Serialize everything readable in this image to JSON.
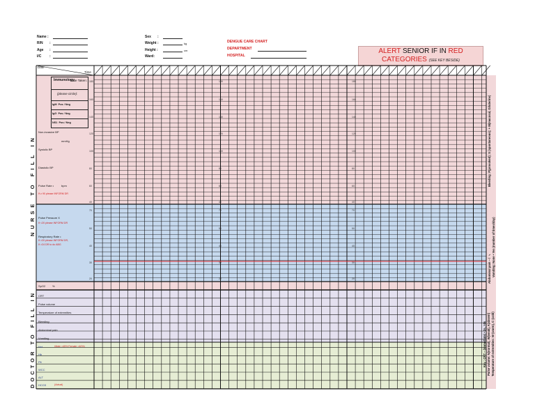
{
  "patient": {
    "name": "Name :",
    "rn": "R/N",
    "age": "Age",
    "ic": "I/C",
    "colon": ":",
    "sex": "Sex",
    "weight": "Weight :",
    "weight_unit": "kg",
    "height": "Height :",
    "height_unit": "cm",
    "ward": "Ward:"
  },
  "chart": {
    "title": "DENGUE CARE CHART",
    "department": "DEPARTMENT",
    "hospital": "HOSPITAL"
  },
  "alert": {
    "w1": "ALERT",
    "w2": " SENIOR IF IN ",
    "w3": "RED",
    "w4": "CATEGORIES",
    "note": "(SEE KEY BESIDE)"
  },
  "grid_header": {
    "date": "Date",
    "time": "Time"
  },
  "immunology": {
    "title": "Immunology",
    "date_taken": "Date Taken:",
    "please_circle": "(please circle):",
    "rows": [
      {
        "name": "IgM",
        "value": "Pos / Neg"
      },
      {
        "name": "IgG",
        "value": "Pos / Neg"
      },
      {
        "name": "NS1",
        "value": "Pos / Neg"
      }
    ]
  },
  "nurse_rows": {
    "nibp": "Non-invasive BP",
    "mmhg": "mmHg",
    "systolic": "Systolic BP",
    "diastolic": "Diastolic BP",
    "pulse_rate": "Pulse Rate •",
    "bpm": "bpm",
    "pulse_alert": "If ≥ 90 please INFORM DR",
    "pulse_pressure": "Pulse Pressure X",
    "pp_alert": "If <20 please INFORM DR",
    "resp_rate": "Respiratory Rate •",
    "rr_alert1": "If >20 please INFORM DR,",
    "rr_alert2": "If >24 DR to do ABG",
    "spo2": "SpO2",
    "percent": "%"
  },
  "scale_top": [
    "180",
    "160",
    "140",
    "120",
    "100",
    "80",
    "60",
    "40"
  ],
  "scale_blue": [
    "70",
    "60",
    "50",
    "40",
    "30",
    "20",
    "10"
  ],
  "doctor_rows": [
    "CRT",
    "Pulse volume",
    "Temperature of extremities",
    "Bleeding",
    "Abdominal pain",
    "Vomiting"
  ],
  "lab_rows": [
    {
      "label": "Hct",
      "note": "(Male >45% Female >40%)"
    },
    {
      "label": "Hb",
      "note": ""
    },
    {
      "label": "Plt",
      "note": ""
    },
    {
      "label": "WCC",
      "note": ""
    },
    {
      "label": "ALT",
      "note": ""
    },
    {
      "label": "HCO3",
      "note": "(Actual)"
    }
  ],
  "side": {
    "nurse": "NURSE TO FILL IN",
    "doctor": "DOCTOR TO FILL IN"
  },
  "key": {
    "bleeding": "Bleeding: P(provoked); S (spontaneous); + M(mucosal, GI/uterine)",
    "abdo": "Abdominal pain – / ✓",
    "vomiting": "Vomiting: None • Yes (number of times/day)",
    "crt": "Key : CRT – (immediate) • 2s, >3s",
    "pulse_vol": "Pulse volume: N(normal), W(weak), A(absent)",
    "temp": "Temperature of extremities: W (warm), C (cold)"
  },
  "colors": {
    "pink": "#f2d8da",
    "blue": "#c6d9ee",
    "lavender": "#e4e0ef",
    "green": "#e6edd4",
    "red_line": "#d42020",
    "alert_bg": "#f5d5d5"
  }
}
